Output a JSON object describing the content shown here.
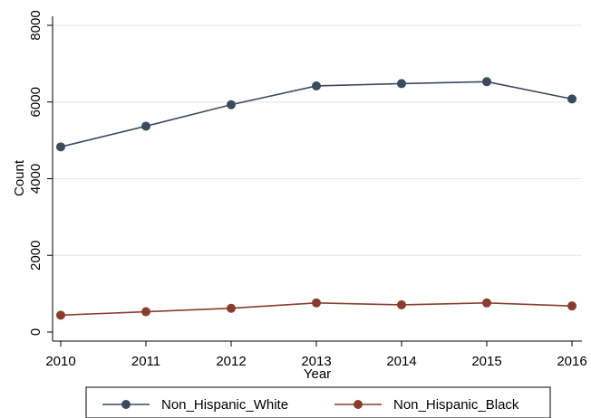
{
  "chart_data": {
    "type": "line",
    "x": [
      2010,
      2011,
      2012,
      2013,
      2014,
      2015,
      2016
    ],
    "x_tick_labels": [
      "2010",
      "2011",
      "2012",
      "2013",
      "2014",
      "2015",
      "2016"
    ],
    "xlabel": "Year",
    "ylabel": "Count",
    "ylim": [
      0,
      8000
    ],
    "y_ticks": [
      0,
      2000,
      4000,
      6000,
      8000
    ],
    "y_tick_labels": [
      "0",
      "2000",
      "4000",
      "6000",
      "8000"
    ],
    "grid": true,
    "legend_position": "bottom",
    "series": [
      {
        "name": "Non_Hispanic_White",
        "color": "#3b4a5e",
        "values": [
          4830,
          5370,
          5930,
          6420,
          6480,
          6530,
          6080
        ]
      },
      {
        "name": "Non_Hispanic_Black",
        "color": "#8b3d2d",
        "values": [
          440,
          530,
          620,
          760,
          710,
          760,
          680
        ]
      }
    ]
  }
}
